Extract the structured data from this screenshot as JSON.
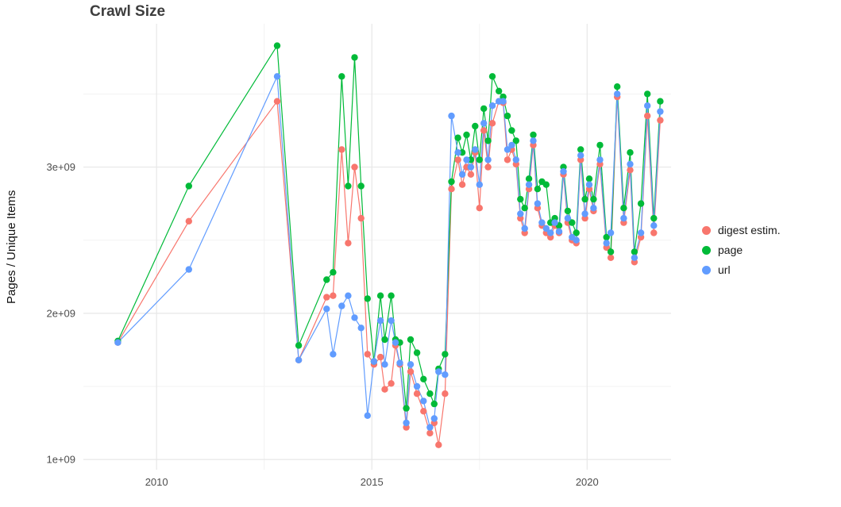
{
  "page": {
    "title": "Crawl Size"
  },
  "chart_data": {
    "type": "line",
    "title": "Crawl Size",
    "xlabel": "",
    "ylabel": "Pages / Unique Items",
    "grid": true,
    "legend_position": "right",
    "xlim": [
      2008.3,
      2021.95
    ],
    "ylim": [
      930000000.0,
      3980000000.0
    ],
    "x_ticks": [
      {
        "value": 2010,
        "label": "2010"
      },
      {
        "value": 2015,
        "label": "2015"
      },
      {
        "value": 2020,
        "label": "2020"
      }
    ],
    "y_ticks": [
      {
        "value": 1000000000.0,
        "label": "1e+09"
      },
      {
        "value": 2000000000.0,
        "label": "2e+09"
      },
      {
        "value": 3000000000.0,
        "label": "3e+09"
      }
    ],
    "x_minor_ticks": [
      2012.5,
      2017.5
    ],
    "y_minor_ticks": [
      1500000000.0,
      2500000000.0,
      3500000000.0
    ],
    "colors": {
      "digest_estim": "#F8766D",
      "page": "#00BA38",
      "url": "#619CFF",
      "grid_major": "#e7e7e7",
      "grid_minor": "#f3f3f3",
      "tick_label": "#4d4d4d"
    },
    "x": [
      2009.1,
      2010.75,
      2012.8,
      2013.3,
      2013.95,
      2014.1,
      2014.3,
      2014.45,
      2014.6,
      2014.75,
      2014.9,
      2015.05,
      2015.2,
      2015.3,
      2015.45,
      2015.55,
      2015.65,
      2015.8,
      2015.9,
      2016.05,
      2016.2,
      2016.35,
      2016.45,
      2016.55,
      2016.7,
      2016.85,
      2017.0,
      2017.1,
      2017.2,
      2017.3,
      2017.4,
      2017.5,
      2017.6,
      2017.7,
      2017.8,
      2017.95,
      2018.05,
      2018.15,
      2018.25,
      2018.35,
      2018.45,
      2018.55,
      2018.65,
      2018.75,
      2018.85,
      2018.95,
      2019.05,
      2019.15,
      2019.25,
      2019.35,
      2019.45,
      2019.55,
      2019.65,
      2019.75,
      2019.85,
      2019.95,
      2020.05,
      2020.15,
      2020.3,
      2020.45,
      2020.55,
      2020.7,
      2020.85,
      2021.0,
      2021.1,
      2021.25,
      2021.4,
      2021.55,
      2021.7
    ],
    "series": [
      {
        "name": "digest estim.",
        "color": "#F8766D",
        "values": [
          1800000000.0,
          2630000000.0,
          3450000000.0,
          1680000000.0,
          2110000000.0,
          2120000000.0,
          3120000000.0,
          2480000000.0,
          3000000000.0,
          2650000000.0,
          1720000000.0,
          1650000000.0,
          1700000000.0,
          1480000000.0,
          1520000000.0,
          1780000000.0,
          1650000000.0,
          1220000000.0,
          1600000000.0,
          1450000000.0,
          1330000000.0,
          1180000000.0,
          1250000000.0,
          1100000000.0,
          1450000000.0,
          2850000000.0,
          3050000000.0,
          2880000000.0,
          3000000000.0,
          2950000000.0,
          3100000000.0,
          2720000000.0,
          3250000000.0,
          3000000000.0,
          3300000000.0,
          3450000000.0,
          3440000000.0,
          3050000000.0,
          3120000000.0,
          3020000000.0,
          2650000000.0,
          2550000000.0,
          2850000000.0,
          3150000000.0,
          2720000000.0,
          2600000000.0,
          2550000000.0,
          2520000000.0,
          2600000000.0,
          2550000000.0,
          2950000000.0,
          2620000000.0,
          2500000000.0,
          2480000000.0,
          3050000000.0,
          2650000000.0,
          2850000000.0,
          2700000000.0,
          3020000000.0,
          2450000000.0,
          2380000000.0,
          3480000000.0,
          2620000000.0,
          2980000000.0,
          2350000000.0,
          2520000000.0,
          3350000000.0,
          2550000000.0,
          3320000000.0
        ]
      },
      {
        "name": "page",
        "color": "#00BA38",
        "values": [
          1810000000.0,
          2870000000.0,
          3830000000.0,
          1780000000.0,
          2230000000.0,
          2280000000.0,
          3620000000.0,
          2870000000.0,
          3750000000.0,
          2870000000.0,
          2100000000.0,
          1670000000.0,
          2120000000.0,
          1820000000.0,
          2120000000.0,
          1820000000.0,
          1800000000.0,
          1350000000.0,
          1820000000.0,
          1730000000.0,
          1550000000.0,
          1450000000.0,
          1380000000.0,
          1620000000.0,
          1720000000.0,
          2900000000.0,
          3200000000.0,
          3100000000.0,
          3220000000.0,
          3050000000.0,
          3280000000.0,
          3050000000.0,
          3400000000.0,
          3180000000.0,
          3620000000.0,
          3520000000.0,
          3480000000.0,
          3350000000.0,
          3250000000.0,
          3180000000.0,
          2780000000.0,
          2720000000.0,
          2920000000.0,
          3220000000.0,
          2850000000.0,
          2900000000.0,
          2880000000.0,
          2620000000.0,
          2650000000.0,
          2600000000.0,
          3000000000.0,
          2700000000.0,
          2620000000.0,
          2550000000.0,
          3120000000.0,
          2780000000.0,
          2920000000.0,
          2780000000.0,
          3150000000.0,
          2520000000.0,
          2420000000.0,
          3550000000.0,
          2720000000.0,
          3100000000.0,
          2420000000.0,
          2750000000.0,
          3500000000.0,
          2650000000.0,
          3450000000.0
        ]
      },
      {
        "name": "url",
        "color": "#619CFF",
        "values": [
          1800000000.0,
          2300000000.0,
          3620000000.0,
          1680000000.0,
          2030000000.0,
          1720000000.0,
          2050000000.0,
          2120000000.0,
          1970000000.0,
          1900000000.0,
          1300000000.0,
          1670000000.0,
          1950000000.0,
          1650000000.0,
          1950000000.0,
          1800000000.0,
          1660000000.0,
          1250000000.0,
          1650000000.0,
          1500000000.0,
          1400000000.0,
          1220000000.0,
          1280000000.0,
          1600000000.0,
          1580000000.0,
          3350000000.0,
          3100000000.0,
          2950000000.0,
          3050000000.0,
          3000000000.0,
          3120000000.0,
          2880000000.0,
          3300000000.0,
          3050000000.0,
          3420000000.0,
          3450000000.0,
          3450000000.0,
          3120000000.0,
          3150000000.0,
          3050000000.0,
          2680000000.0,
          2580000000.0,
          2880000000.0,
          3180000000.0,
          2750000000.0,
          2620000000.0,
          2580000000.0,
          2550000000.0,
          2620000000.0,
          2560000000.0,
          2970000000.0,
          2650000000.0,
          2520000000.0,
          2500000000.0,
          3080000000.0,
          2680000000.0,
          2880000000.0,
          2720000000.0,
          3050000000.0,
          2480000000.0,
          2550000000.0,
          3500000000.0,
          2650000000.0,
          3020000000.0,
          2380000000.0,
          2550000000.0,
          3420000000.0,
          2600000000.0,
          3380000000.0
        ]
      }
    ]
  }
}
